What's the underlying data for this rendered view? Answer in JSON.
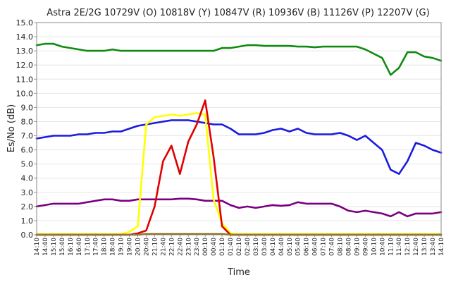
{
  "chart_data": {
    "type": "line",
    "title": "Astra 2E/2G 10729V (O) 10818V (Y) 10847V (R) 10936V (B) 11126V (P) 12207V (G)",
    "xlabel": "Time",
    "ylabel": "Es/No (dB)",
    "ylim": [
      0,
      15
    ],
    "ytick_labels": [
      "0.0",
      "1.0",
      "2.0",
      "3.0",
      "4.0",
      "5.0",
      "6.0",
      "7.0",
      "8.0",
      "9.0",
      "10.0",
      "11.0",
      "12.0",
      "13.0",
      "14.0",
      "15.0"
    ],
    "grid": true,
    "legend": "none",
    "x_labels": [
      "14:10",
      "14:40",
      "15:10",
      "15:40",
      "16:10",
      "16:40",
      "17:10",
      "17:40",
      "18:10",
      "18:40",
      "19:10",
      "19:40",
      "20:10",
      "20:40",
      "21:10",
      "21:40",
      "22:10",
      "22:40",
      "23:10",
      "23:40",
      "00:10",
      "00:40",
      "01:10",
      "01:40",
      "02:10",
      "02:40",
      "03:10",
      "03:40",
      "04:10",
      "04:40",
      "05:10",
      "05:40",
      "06:10",
      "06:40",
      "07:10",
      "07:40",
      "08:10",
      "08:40",
      "09:10",
      "09:40",
      "10:10",
      "10:40",
      "11:10",
      "11:40",
      "12:10",
      "12:40",
      "13:10",
      "13:40",
      "14:10"
    ],
    "series": [
      {
        "name": "12207V (G)",
        "color": "#108a10",
        "values": [
          13.4,
          13.5,
          13.5,
          13.3,
          13.2,
          13.1,
          13.0,
          13.0,
          13.0,
          13.1,
          13.0,
          13.0,
          13.0,
          13.0,
          13.0,
          13.0,
          13.0,
          13.0,
          13.0,
          13.0,
          13.0,
          13.0,
          13.2,
          13.2,
          13.3,
          13.4,
          13.4,
          13.35,
          13.35,
          13.35,
          13.35,
          13.3,
          13.3,
          13.25,
          13.3,
          13.3,
          13.3,
          13.3,
          13.3,
          13.1,
          12.8,
          12.5,
          11.3,
          11.8,
          12.9,
          12.9,
          12.6,
          12.5,
          12.3
        ]
      },
      {
        "name": "10936V (B)",
        "color": "#1a1ae0",
        "values": [
          6.8,
          6.9,
          7.0,
          7.0,
          7.0,
          7.1,
          7.1,
          7.2,
          7.2,
          7.3,
          7.3,
          7.5,
          7.7,
          7.8,
          7.9,
          8.0,
          8.1,
          8.1,
          8.1,
          8.0,
          7.9,
          7.8,
          7.8,
          7.5,
          7.1,
          7.1,
          7.1,
          7.2,
          7.4,
          7.5,
          7.3,
          7.5,
          7.2,
          7.1,
          7.1,
          7.1,
          7.2,
          7.0,
          6.7,
          7.0,
          6.5,
          6.0,
          4.6,
          4.3,
          5.2,
          6.5,
          6.3,
          6.0,
          5.8
        ]
      },
      {
        "name": "11126V (P)",
        "color": "#7a0080",
        "values": [
          2.0,
          2.1,
          2.2,
          2.2,
          2.2,
          2.2,
          2.3,
          2.4,
          2.5,
          2.5,
          2.4,
          2.4,
          2.5,
          2.5,
          2.5,
          2.5,
          2.5,
          2.55,
          2.55,
          2.5,
          2.4,
          2.4,
          2.4,
          2.1,
          1.9,
          2.0,
          1.9,
          2.0,
          2.1,
          2.05,
          2.1,
          2.3,
          2.2,
          2.2,
          2.2,
          2.2,
          2.0,
          1.7,
          1.6,
          1.7,
          1.6,
          1.5,
          1.3,
          1.6,
          1.3,
          1.5,
          1.5,
          1.5,
          1.6
        ]
      },
      {
        "name": "10818V (Y)",
        "color": "#ffff00",
        "values": [
          0.05,
          0.05,
          0.05,
          0.05,
          0.05,
          0.05,
          0.05,
          0.05,
          0.05,
          0.05,
          0.05,
          0.2,
          0.6,
          7.8,
          8.3,
          8.4,
          8.5,
          8.4,
          8.5,
          8.6,
          8.5,
          2.5,
          0.8,
          0.1,
          0.05,
          0.05,
          0.05,
          0.05,
          0.05,
          0.05,
          0.05,
          0.05,
          0.05,
          0.05,
          0.05,
          0.05,
          0.05,
          0.05,
          0.05,
          0.05,
          0.05,
          0.05,
          0.05,
          0.05,
          0.05,
          0.05,
          0.05,
          0.05,
          0.05
        ]
      },
      {
        "name": "10847V (R)",
        "color": "#e00000",
        "values": [
          0,
          0,
          0,
          0,
          0,
          0,
          0,
          0,
          0,
          0,
          0,
          0,
          0.1,
          0.3,
          2.0,
          5.2,
          6.3,
          4.3,
          6.6,
          7.8,
          9.5,
          5.5,
          0.6,
          0,
          0,
          0,
          0,
          0,
          0,
          0,
          0,
          0,
          0,
          0,
          0,
          0,
          0,
          0,
          0,
          0,
          0,
          0,
          0,
          0,
          0,
          0,
          0,
          0,
          0
        ]
      },
      {
        "name": "10729V (O)",
        "color": "#8a6a00",
        "values": [
          0,
          0,
          0,
          0,
          0,
          0,
          0,
          0,
          0,
          0,
          0,
          0,
          0,
          0.05,
          0.05,
          0.05,
          0.05,
          0.05,
          0.05,
          0.05,
          0.05,
          0.05,
          0.05,
          0,
          0,
          0,
          0,
          0,
          0,
          0,
          0,
          0,
          0,
          0,
          0,
          0,
          0,
          0,
          0,
          0,
          0,
          0,
          0,
          0,
          0,
          0,
          0,
          0,
          0
        ]
      }
    ]
  }
}
